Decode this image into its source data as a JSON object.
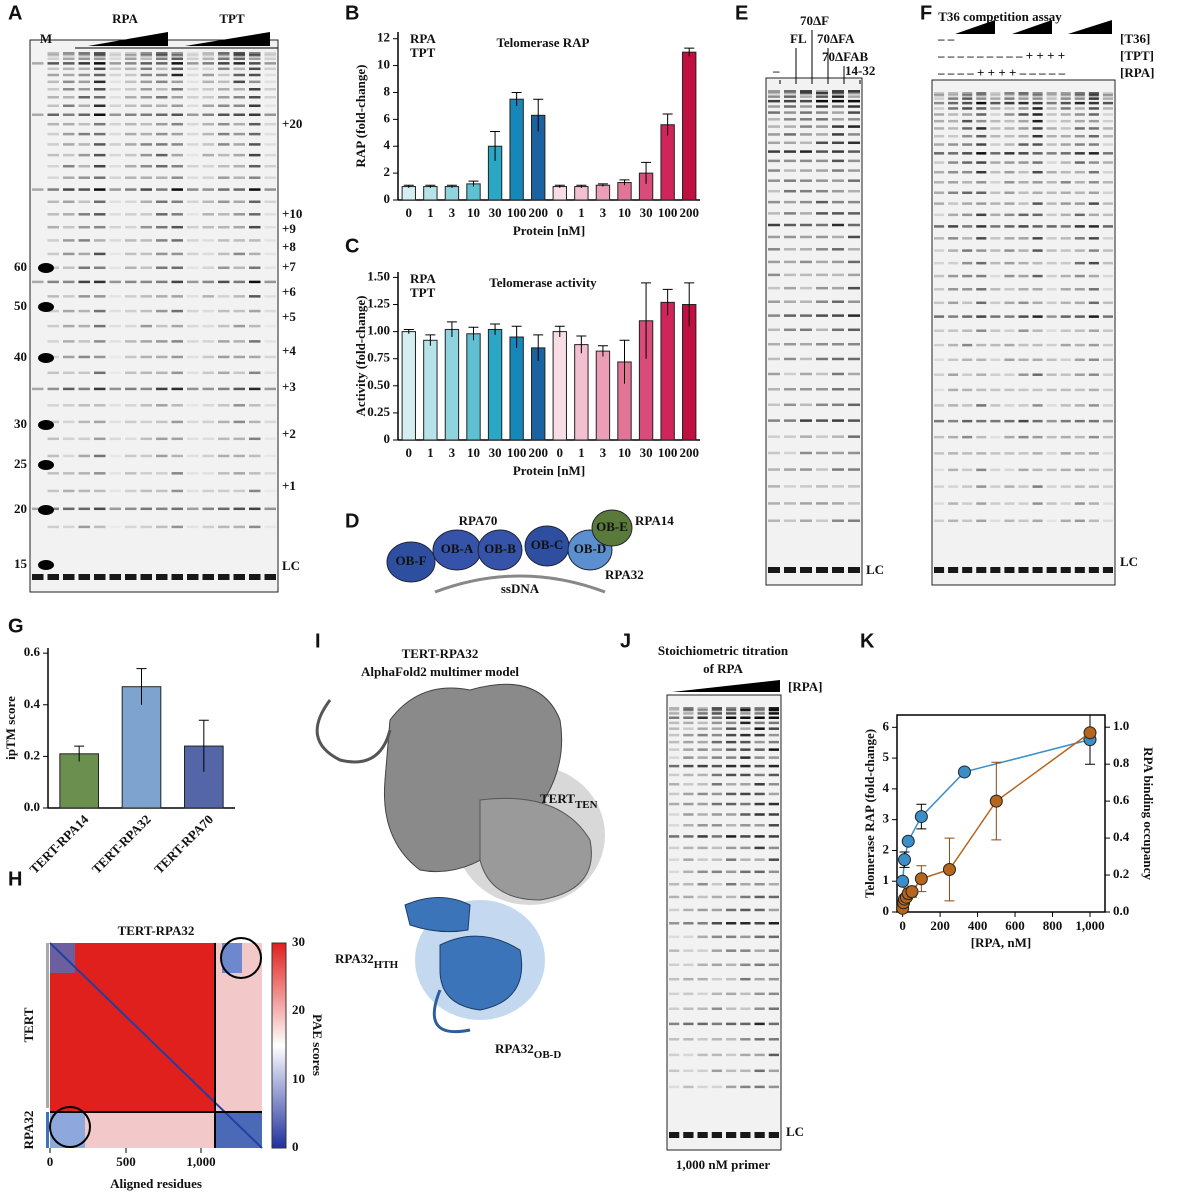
{
  "panels": [
    "A",
    "B",
    "C",
    "D",
    "E",
    "F",
    "G",
    "H",
    "I",
    "J",
    "K"
  ],
  "gelA": {
    "marker": "M",
    "groups": [
      "RPA",
      "TPT"
    ],
    "sizes": [
      "60",
      "50",
      "40",
      "30",
      "25",
      "20",
      "15"
    ],
    "repeats": [
      "+20",
      "+10",
      "+9",
      "+8",
      "+7",
      "+6",
      "+5",
      "+4",
      "+3",
      "+2",
      "+1",
      "LC"
    ]
  },
  "gelE": {
    "lanes": [
      "–",
      "FL",
      "70ΔF",
      "70ΔFA",
      "70ΔFAB",
      "14-32"
    ],
    "lc": "LC"
  },
  "gelF": {
    "title": "T36 competition assay",
    "rows": [
      {
        "label": "[T36]",
        "signs": "– –"
      },
      {
        "label": "[TPT]",
        "signs": "– – – – – – – – – + + + +"
      },
      {
        "label": "[RPA]",
        "signs": "– – – – + + + + – – – – –"
      }
    ],
    "lc": "LC"
  },
  "gelJ": {
    "title": [
      "Stoichiometric titration",
      "of RPA"
    ],
    "wedge": "[RPA]",
    "lc": "LC",
    "footer": "1,000 nM primer"
  },
  "schematic": {
    "domains": [
      "OB-F",
      "OB-A",
      "OB-B",
      "OB-C",
      "OB-D",
      "OB-E"
    ],
    "labels": [
      "RPA70",
      "RPA14",
      "RPA32",
      "ssDNA"
    ]
  },
  "heatmap": {
    "title": "TERT-RPA32",
    "xlabel": "Aligned residues",
    "xticks": [
      "0",
      "500",
      "1,000"
    ],
    "rows": [
      "TERT",
      "RPA32"
    ],
    "colorbar": {
      "label": "PAE scores",
      "ticks": [
        "0",
        "10",
        "20",
        "30"
      ]
    }
  },
  "structure": {
    "title": [
      "TERT-RPA32",
      "AlphaFold2 multimer model"
    ],
    "labels": [
      {
        "main": "TERT",
        "sub": "TEN"
      },
      {
        "main": "RPA32",
        "sub": "HTH"
      },
      {
        "main": "RPA32",
        "sub": "OB-D"
      }
    ]
  },
  "chart_data": [
    {
      "type": "bar",
      "title": "Telomerase RAP",
      "ylabel": "RAP (fold-change)",
      "xlabel": "Protein [nM]",
      "categories": [
        "0",
        "1",
        "3",
        "10",
        "30",
        "100",
        "200",
        "0",
        "1",
        "3",
        "10",
        "30",
        "100",
        "200"
      ],
      "values": [
        1,
        1,
        1,
        1.2,
        4,
        7.5,
        6.3,
        1,
        1,
        1.1,
        1.3,
        2,
        5.6,
        11
      ],
      "errors": [
        0.1,
        0.1,
        0.1,
        0.2,
        1.1,
        0.5,
        1.2,
        0.1,
        0.1,
        0.1,
        0.2,
        0.8,
        0.8,
        0.3
      ],
      "colors": [
        "#d4eef2",
        "#b6e3ea",
        "#8fd3de",
        "#5fc0d2",
        "#2aa7c4",
        "#1786b8",
        "#1a63a0",
        "#f8dde5",
        "#f2c0cf",
        "#eb9fb6",
        "#e27596",
        "#d94b78",
        "#d1245a",
        "#c0103f"
      ],
      "legend": [
        {
          "name": "RPA",
          "color": "#2a7ab8"
        },
        {
          "name": "TPT",
          "color": "#d1245a"
        }
      ],
      "ylim": [
        0,
        12.5
      ],
      "yticks": [
        0,
        2,
        4,
        6,
        8,
        10,
        12
      ]
    },
    {
      "type": "bar",
      "title": "Telomerase activity",
      "ylabel": "Activity (fold-change)",
      "xlabel": "Protein [nM]",
      "categories": [
        "0",
        "1",
        "3",
        "10",
        "30",
        "100",
        "200",
        "0",
        "1",
        "3",
        "10",
        "30",
        "100",
        "200"
      ],
      "values": [
        1.0,
        0.92,
        1.02,
        0.98,
        1.02,
        0.95,
        0.85,
        1.0,
        0.88,
        0.82,
        0.72,
        1.1,
        1.27,
        1.25
      ],
      "errors": [
        0.02,
        0.05,
        0.07,
        0.06,
        0.05,
        0.1,
        0.12,
        0.05,
        0.08,
        0.05,
        0.2,
        0.35,
        0.12,
        0.2
      ],
      "colors": [
        "#d4eef2",
        "#b6e3ea",
        "#8fd3de",
        "#5fc0d2",
        "#2aa7c4",
        "#1786b8",
        "#1a63a0",
        "#f8dde5",
        "#f2c0cf",
        "#eb9fb6",
        "#e27596",
        "#d94b78",
        "#d1245a",
        "#c0103f"
      ],
      "legend": [
        {
          "name": "RPA",
          "color": "#2a7ab8"
        },
        {
          "name": "TPT",
          "color": "#d1245a"
        }
      ],
      "ylim": [
        0,
        1.55
      ],
      "yticks": [
        0,
        0.25,
        {
          "value": 0.5,
          "label": "0.50"
        },
        0.75,
        {
          "value": 1,
          "label": "1.00"
        },
        1.25,
        {
          "value": 1.5,
          "label": "1.50"
        }
      ]
    },
    {
      "type": "bar",
      "ylabel": "ipTM score",
      "categories": [
        "TERT-RPA14",
        "TERT-RPA32",
        "TERT-RPA70"
      ],
      "values": [
        0.21,
        0.47,
        0.24
      ],
      "errors": [
        0.03,
        0.07,
        0.1
      ],
      "colors": [
        "#6b8f4e",
        "#7fa3cf",
        "#5566a8"
      ],
      "ylim": [
        0,
        0.62
      ],
      "yticks": [
        {
          "value": 0,
          "label": "0.0"
        },
        0.2,
        0.4,
        0.6
      ]
    },
    {
      "type": "scatter",
      "xlabel": "[RPA, nM]",
      "ylabel": "Telomerase RAP (fold-change)",
      "y2label": "RPA binding occupancy",
      "series": [
        {
          "color": "#3a8fc8",
          "x": [
            0,
            10,
            30,
            100,
            330,
            1000
          ],
          "values": [
            1.0,
            1.7,
            2.3,
            3.1,
            4.55,
            5.6
          ],
          "errors": [
            0.1,
            0.25,
            0.1,
            0.4,
            0.05,
            0.8
          ]
        },
        {
          "color": "#b5651d",
          "axis": "y2",
          "x": [
            0,
            5,
            10,
            20,
            30,
            50,
            100,
            250,
            500,
            1000
          ],
          "values": [
            0.02,
            0.05,
            0.07,
            0.08,
            0.1,
            0.11,
            0.18,
            0.23,
            0.6,
            0.97
          ],
          "errors": [
            0.01,
            0.02,
            0.02,
            0.02,
            0.03,
            0.03,
            0.07,
            0.17,
            0.21,
            0.02
          ]
        }
      ],
      "xlim": [
        -30,
        1080
      ],
      "xticks": [
        0,
        200,
        400,
        600,
        800,
        {
          "value": 1000,
          "label": "1,000"
        }
      ],
      "ylim": [
        0,
        6.4
      ],
      "yticks": [
        0,
        1,
        2,
        3,
        4,
        5,
        6
      ],
      "y2lim": [
        0,
        1.066
      ],
      "y2ticks": [
        {
          "value": 0,
          "label": "0.0"
        },
        0.2,
        0.4,
        0.6,
        0.8,
        {
          "value": 1,
          "label": "1.0"
        }
      ]
    }
  ]
}
